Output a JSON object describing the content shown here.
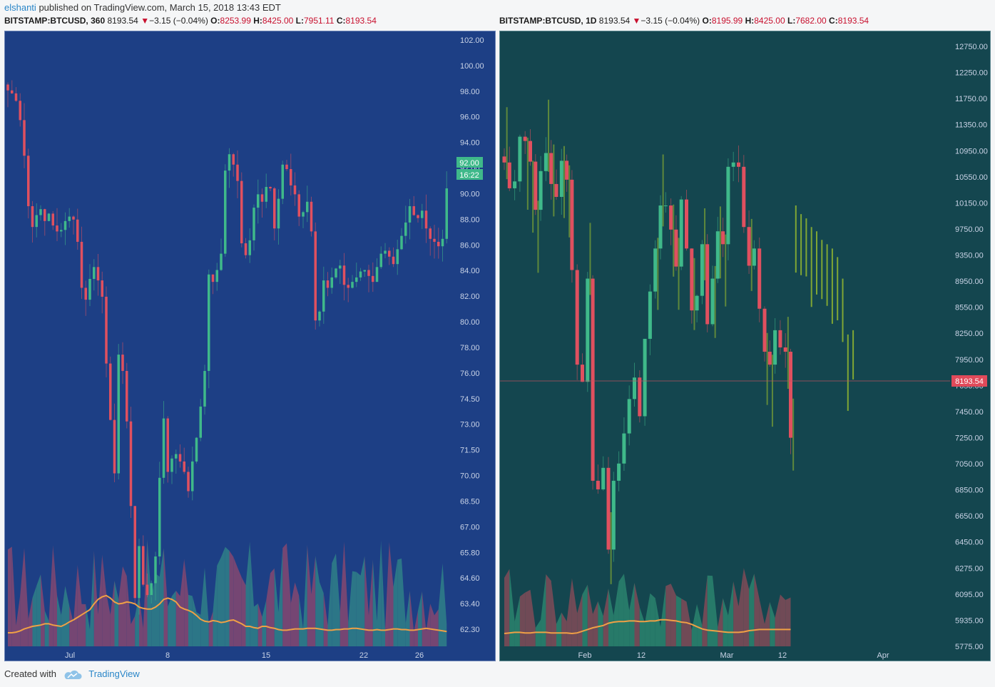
{
  "publish": {
    "author": "elshanti",
    "text": "published on TradingView.com, March 15, 2018 13:43 EDT"
  },
  "left_header": {
    "symbol": "BITSTAMP:BTCUSD, 360",
    "price": "8193.54",
    "arrow": "▼",
    "change": "−3.15 (−0.04%)",
    "o_label": "O:",
    "o_value": "8253.99",
    "h_label": "H:",
    "h_value": "8425.00",
    "l_label": "L:",
    "l_value": "7951.11",
    "c_label": "C:",
    "c_value": "8193.54"
  },
  "right_header": {
    "symbol": "BITSTAMP:BTCUSD, 1D",
    "price": "8193.54",
    "arrow": "▼",
    "change": "−3.15 (−0.04%)",
    "o_label": "O:",
    "o_value": "8195.99",
    "h_label": "H:",
    "h_value": "8425.00",
    "l_label": "L:",
    "l_value": "7682.00",
    "c_label": "C:",
    "c_value": "8193.54"
  },
  "footer": {
    "created": "Created with",
    "brand": "TradingView"
  },
  "colors": {
    "up": "#3fb98a",
    "down": "#e0505f",
    "projection": "#9bbf2e",
    "ma": "#f0a045",
    "axis_text": "#c9d3e6",
    "badge": "#3fb98a",
    "price_badge": "#e04a5a"
  },
  "chart_data": [
    {
      "type": "candlestick",
      "title": "BITSTAMP:BTCUSD, 360",
      "y_axis_labels": [
        "102.00",
        "100.00",
        "98.00",
        "96.00",
        "94.00",
        "92.00",
        "90.00",
        "88.00",
        "86.00",
        "84.00",
        "82.00",
        "80.00",
        "78.00",
        "76.00",
        "74.50",
        "73.00",
        "71.50",
        "70.00",
        "68.50",
        "67.00",
        "65.80",
        "64.60",
        "63.40",
        "62.30"
      ],
      "x_axis_labels": [
        "Jul",
        "8",
        "15",
        "22",
        "26"
      ],
      "last_value_badge": "92.00",
      "countdown_badge": "16:22",
      "closes": [
        98.6,
        98.4,
        97.9,
        96.6,
        94.2,
        90.8,
        89.4,
        90.2,
        90.6,
        89.8,
        90.3,
        89.5,
        89.1,
        89.2,
        89.8,
        90.1,
        89.9,
        88.4,
        85.3,
        84.5,
        85.9,
        86.7,
        85.8,
        84.7,
        80.2,
        76.4,
        72.8,
        80.8,
        79.7,
        76.3,
        70.6,
        64.4,
        67.9,
        65.3,
        64.6,
        65.4,
        67.2,
        72.5,
        76.5,
        72.9,
        73.8,
        74.1,
        73.6,
        72.9,
        71.6,
        73.6,
        75.2,
        77.3,
        79.7,
        86.2,
        85.7,
        86.5,
        87.6,
        93.2,
        94.3,
        93.6,
        92.5,
        88.3,
        87.5,
        88.5,
        90.7,
        91.6,
        91.1,
        92.1,
        92.0,
        89.3,
        91.3,
        93.6,
        93.3,
        92.2,
        91.6,
        90.1,
        90.4,
        91.1,
        89.1,
        83.1,
        83.7,
        85.8,
        85.3,
        86.0,
        86.6,
        86.8,
        85.5,
        85.3,
        85.7,
        86.0,
        86.4,
        86.5,
        86.1,
        85.7,
        86.7,
        87.6,
        87.8,
        87.4,
        86.9,
        87.9,
        88.8,
        89.7,
        90.8,
        90.2,
        90.0,
        90.5,
        89.3,
        88.6,
        88.4,
        88.1,
        88.6,
        92.0
      ],
      "volume_ma_relative": [
        0.1,
        0.1,
        0.11,
        0.13,
        0.16,
        0.18,
        0.2,
        0.21,
        0.22,
        0.24,
        0.24,
        0.22,
        0.21,
        0.2,
        0.23,
        0.27,
        0.3,
        0.34,
        0.38,
        0.42,
        0.46,
        0.55,
        0.62,
        0.66,
        0.68,
        0.64,
        0.58,
        0.55,
        0.56,
        0.58,
        0.57,
        0.55,
        0.5,
        0.48,
        0.47,
        0.47,
        0.5,
        0.55,
        0.62,
        0.64,
        0.62,
        0.58,
        0.5,
        0.47,
        0.45,
        0.42,
        0.37,
        0.31,
        0.28,
        0.27,
        0.29,
        0.28,
        0.26,
        0.27,
        0.29,
        0.3,
        0.27,
        0.24,
        0.2,
        0.2,
        0.18,
        0.17,
        0.2,
        0.2,
        0.18,
        0.17,
        0.15,
        0.14,
        0.14,
        0.15,
        0.16,
        0.16,
        0.16,
        0.17,
        0.17,
        0.17,
        0.16,
        0.15,
        0.14,
        0.14,
        0.15,
        0.15,
        0.16,
        0.16,
        0.17,
        0.17,
        0.16,
        0.15,
        0.14,
        0.14,
        0.15,
        0.14,
        0.14,
        0.15,
        0.16,
        0.16,
        0.15,
        0.15,
        0.14,
        0.14,
        0.15,
        0.16,
        0.17,
        0.16,
        0.15,
        0.14,
        0.13,
        0.12
      ]
    },
    {
      "type": "candlestick",
      "title": "BITSTAMP:BTCUSD, 1D",
      "y_axis_labels": [
        "12750.00",
        "12250.00",
        "11750.00",
        "11350.00",
        "10950.00",
        "10550.00",
        "10150.00",
        "9750.00",
        "9350.00",
        "8950.00",
        "8550.00",
        "8250.00",
        "7950.00",
        "7650.00",
        "7450.00",
        "7250.00",
        "7050.00",
        "6850.00",
        "6650.00",
        "6450.00",
        "6275.00",
        "6095.00",
        "5935.00",
        "5775.00"
      ],
      "x_axis_labels": [
        "Feb",
        "12",
        "Mar",
        "12",
        "Apr"
      ],
      "last_price_badge": "8193.54",
      "closes": [
        11400,
        11100,
        11180,
        11700,
        11650,
        11410,
        10850,
        11300,
        11510,
        11150,
        11000,
        11420,
        11200,
        10150,
        9050,
        8850,
        10050,
        7700,
        7600,
        7850,
        6900,
        7700,
        7900,
        8250,
        8650,
        8900,
        8450,
        9350,
        9900,
        10400,
        10900,
        10900,
        10620,
        10190,
        10970,
        10400,
        9680,
        9850,
        10450,
        9520,
        10050,
        10600,
        10450,
        11350,
        11400,
        11350,
        10650,
        10200,
        10400,
        9700,
        9200,
        9050,
        9450,
        9250,
        9200,
        8200
      ],
      "projection_highs": [
        10900,
        10800,
        10750,
        10650,
        10600,
        10500,
        10450,
        10400,
        10300,
        10050,
        9400,
        9450
      ],
      "volume_ma_relative": [
        0.1,
        0.11,
        0.12,
        0.12,
        0.11,
        0.11,
        0.12,
        0.12,
        0.12,
        0.11,
        0.11,
        0.11,
        0.11,
        0.1,
        0.11,
        0.14,
        0.17,
        0.2,
        0.22,
        0.24,
        0.28,
        0.3,
        0.31,
        0.31,
        0.32,
        0.32,
        0.31,
        0.31,
        0.32,
        0.32,
        0.34,
        0.34,
        0.33,
        0.32,
        0.3,
        0.29,
        0.26,
        0.22,
        0.18,
        0.16,
        0.15,
        0.14,
        0.13,
        0.12,
        0.12,
        0.12,
        0.13,
        0.15,
        0.16,
        0.17,
        0.17,
        0.17,
        0.17,
        0.17,
        0.17,
        0.17
      ]
    }
  ]
}
